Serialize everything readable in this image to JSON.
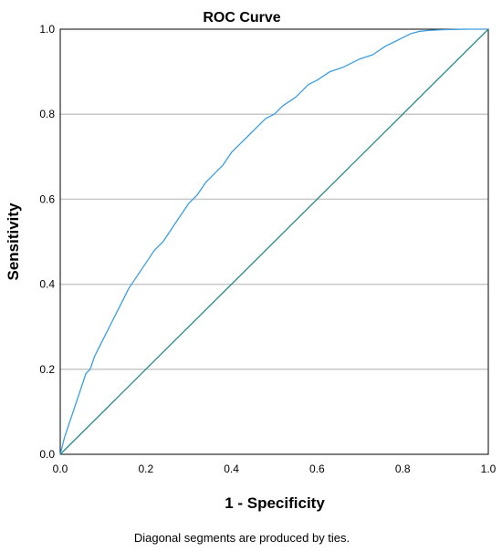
{
  "chart_data": {
    "type": "line",
    "title": "ROC Curve",
    "xlabel": "1 - Specificity",
    "ylabel": "Sensitivity",
    "xlim": [
      0,
      1
    ],
    "ylim": [
      0,
      1
    ],
    "xticks": [
      "0.0",
      "0.2",
      "0.4",
      "0.6",
      "0.8",
      "1.0"
    ],
    "yticks": [
      "0.0",
      "0.2",
      "0.4",
      "0.6",
      "0.8",
      "1.0"
    ],
    "grid": "horizontal",
    "footnote": "Diagonal segments are produced by ties.",
    "series": [
      {
        "color": "#3a9ee0",
        "x": [
          0,
          0.01,
          0.02,
          0.03,
          0.04,
          0.05,
          0.06,
          0.07,
          0.08,
          0.1,
          0.12,
          0.14,
          0.16,
          0.18,
          0.2,
          0.22,
          0.24,
          0.26,
          0.28,
          0.3,
          0.32,
          0.34,
          0.36,
          0.38,
          0.4,
          0.42,
          0.44,
          0.46,
          0.48,
          0.5,
          0.52,
          0.55,
          0.58,
          0.6,
          0.63,
          0.66,
          0.7,
          0.73,
          0.76,
          0.78,
          0.8,
          0.82,
          0.84,
          0.86,
          0.88,
          0.9,
          0.95,
          1.0
        ],
        "y": [
          0,
          0.04,
          0.07,
          0.1,
          0.13,
          0.16,
          0.19,
          0.2,
          0.23,
          0.27,
          0.31,
          0.35,
          0.39,
          0.42,
          0.45,
          0.48,
          0.5,
          0.53,
          0.56,
          0.59,
          0.61,
          0.64,
          0.66,
          0.68,
          0.71,
          0.73,
          0.75,
          0.77,
          0.79,
          0.8,
          0.82,
          0.84,
          0.87,
          0.88,
          0.9,
          0.91,
          0.93,
          0.94,
          0.96,
          0.97,
          0.98,
          0.99,
          0.995,
          0.997,
          0.998,
          0.999,
          1.0,
          1.0
        ]
      },
      {
        "color": "#2b8a8a",
        "x": [
          0,
          1
        ],
        "y": [
          0,
          1
        ]
      }
    ]
  }
}
